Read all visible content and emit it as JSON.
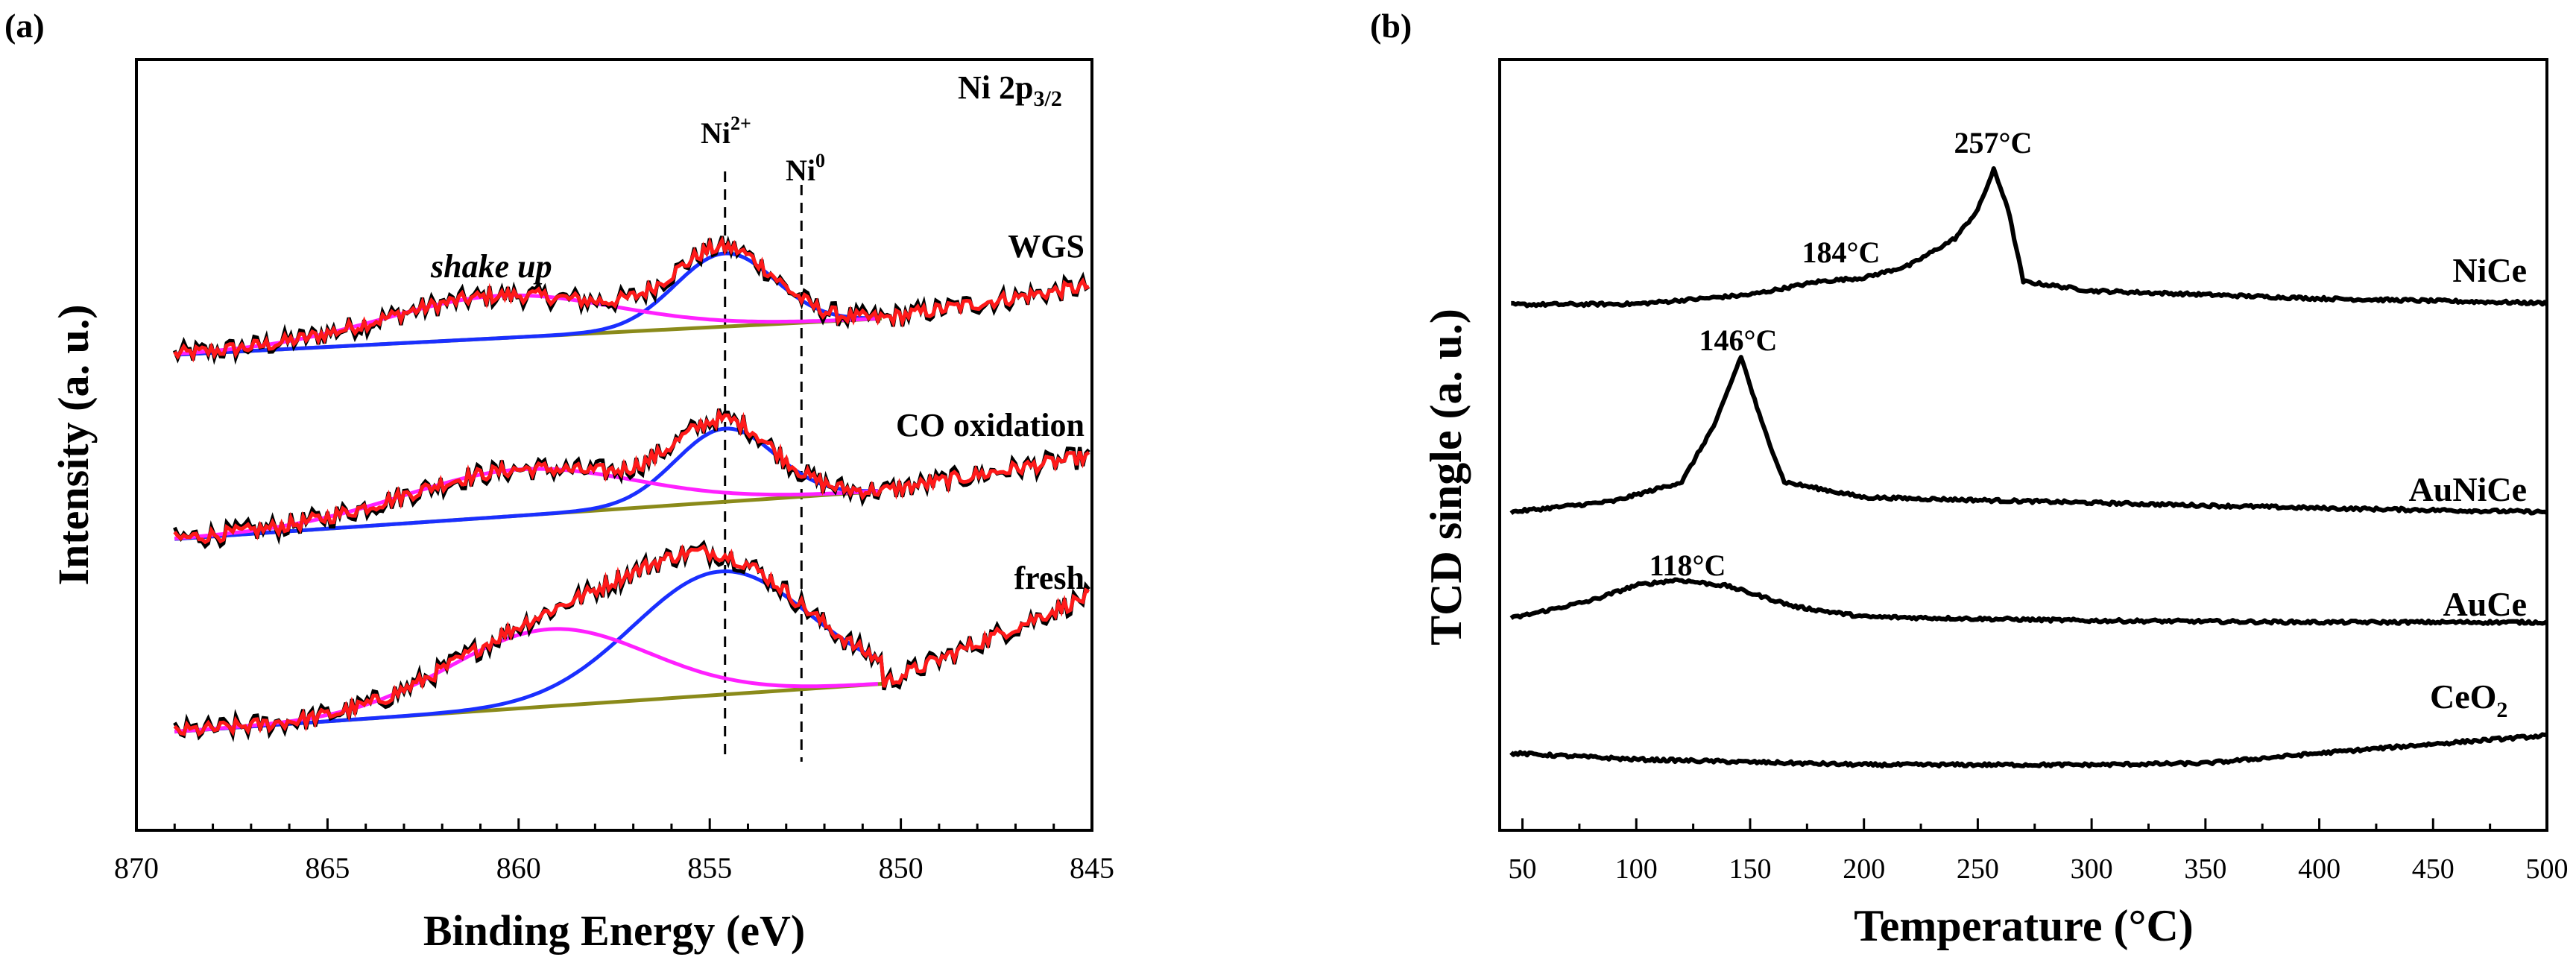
{
  "chart_data": [
    {
      "panel_label": "(a)",
      "type": "line",
      "title": "Ni 2p3/2",
      "title_main": "Ni 2p",
      "title_sub": "3/2",
      "xlabel": "Binding Energy (eV)",
      "ylabel": "Intensity (a. u.)",
      "xlim": [
        870,
        845
      ],
      "x_reversed": true,
      "xticks": [
        870,
        865,
        860,
        855,
        850,
        845
      ],
      "xtick_labels": [
        "870",
        "865",
        "860",
        "855",
        "850",
        "845"
      ],
      "ylim": [
        0,
        1
      ],
      "yticks": "none",
      "annotations": {
        "shake_up": "shake up",
        "ni2_main": "Ni",
        "ni2_sup": "2+",
        "ni2_position": 854.6,
        "ni0_main": "Ni",
        "ni0_sup": "0",
        "ni0_position": 852.6
      },
      "series": [
        {
          "name": "WGS",
          "baseline_left": [
            869,
            0.617
          ],
          "baseline_right": [
            850.5,
            0.664
          ],
          "tail_end": [
            845,
            0.707
          ],
          "peaks": [
            {
              "component": "Ni2+",
              "center": 854.6,
              "height": 0.095,
              "width": 1.3,
              "color": "#1a2fff"
            },
            {
              "component": "shake up",
              "center": 860.5,
              "height": 0.055,
              "width": 3.0,
              "color": "#ff20ff"
            }
          ]
        },
        {
          "name": "CO oxidation",
          "baseline_left": [
            869,
            0.378
          ],
          "baseline_right": [
            850.5,
            0.44
          ],
          "tail_end": [
            845,
            0.486
          ],
          "peaks": [
            {
              "component": "Ni2+",
              "center": 854.6,
              "height": 0.095,
              "width": 1.3,
              "color": "#1a2fff"
            },
            {
              "component": "shake up",
              "center": 860,
              "height": 0.06,
              "width": 3.0,
              "color": "#ff20ff"
            }
          ]
        },
        {
          "name": "fresh",
          "baseline_left": [
            869,
            0.128
          ],
          "baseline_right": [
            850.5,
            0.19
          ],
          "tail_end": [
            845,
            0.306
          ],
          "peaks": [
            {
              "component": "Ni2+",
              "center": 854.7,
              "height": 0.16,
              "width": 2.3,
              "color": "#1a2fff"
            },
            {
              "component": "shake up",
              "center": 859.2,
              "height": 0.1,
              "width": 2.6,
              "color": "#ff20ff"
            }
          ]
        }
      ],
      "colors": {
        "raw": "#000000",
        "fit_envelope": "#ff1a1a",
        "background": "#8a8a1a"
      }
    },
    {
      "panel_label": "(b)",
      "type": "line",
      "title": "",
      "xlabel": "Temperature (°C)",
      "ylabel": "TCD single (a. u.)",
      "xlim": [
        40,
        500
      ],
      "xticks": [
        50,
        100,
        150,
        200,
        250,
        300,
        350,
        400,
        450,
        500
      ],
      "xtick_labels": [
        "50",
        "100",
        "150",
        "200",
        "250",
        "300",
        "350",
        "400",
        "450",
        "500"
      ],
      "ylim": [
        0,
        1
      ],
      "yticks": "none",
      "series": [
        {
          "name": "NiCe",
          "baseline": 0.682,
          "peaks": [
            {
              "temperature": 184,
              "label": "184°C",
              "height": 0.035,
              "width": 15
            },
            {
              "temperature": 257,
              "label": "257°C",
              "height": 0.175,
              "width": 6
            }
          ],
          "x": [
            45,
            100,
            150,
            180,
            200,
            220,
            240,
            250,
            257,
            263,
            270,
            300,
            400,
            500
          ],
          "y": [
            0.682,
            0.683,
            0.695,
            0.712,
            0.717,
            0.733,
            0.768,
            0.805,
            0.857,
            0.81,
            0.712,
            0.7,
            0.69,
            0.684
          ]
        },
        {
          "name": "AuNiCe",
          "baseline": 0.413,
          "peaks": [
            {
              "temperature": 146,
              "label": "146°C",
              "height": 0.205,
              "width": 9
            }
          ],
          "x": [
            45,
            90,
            120,
            135,
            146,
            155,
            165,
            200,
            300,
            400,
            500
          ],
          "y": [
            0.413,
            0.427,
            0.452,
            0.53,
            0.615,
            0.53,
            0.452,
            0.432,
            0.425,
            0.418,
            0.413
          ]
        },
        {
          "name": "AuCe",
          "baseline": 0.272,
          "peaks": [
            {
              "temperature": 118,
              "label": "118°C",
              "height": 0.06,
              "width": 30
            }
          ],
          "x": [
            45,
            80,
            100,
            118,
            140,
            170,
            200,
            300,
            400,
            500
          ],
          "y": [
            0.275,
            0.298,
            0.318,
            0.325,
            0.317,
            0.29,
            0.277,
            0.272,
            0.27,
            0.27
          ]
        },
        {
          "name": "CeO2",
          "name_main": "CeO",
          "name_sub": "2",
          "baseline": 0.1,
          "peaks": [],
          "x": [
            45,
            100,
            200,
            300,
            350,
            400,
            450,
            500
          ],
          "y": [
            0.1,
            0.092,
            0.085,
            0.085,
            0.087,
            0.1,
            0.112,
            0.123
          ]
        }
      ]
    }
  ]
}
